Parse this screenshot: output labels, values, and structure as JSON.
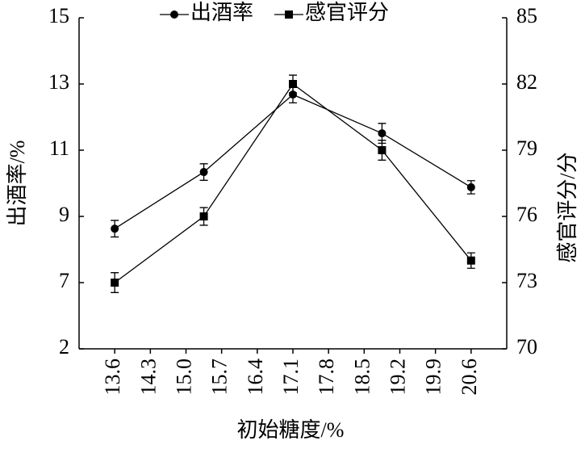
{
  "chart_data": {
    "type": "line",
    "x_label": "初始糖度/%",
    "y_label": "出酒率/%",
    "y2_label": "感官评分/分",
    "xlim": [
      12.9,
      21.3
    ],
    "xticks": [
      13.6,
      14.3,
      15.0,
      15.7,
      16.4,
      17.1,
      17.8,
      18.5,
      19.2,
      19.9,
      20.6
    ],
    "ylim": [
      2,
      15
    ],
    "yticks": [
      2,
      7,
      9,
      11,
      13,
      15
    ],
    "y_axis_break": true,
    "y2lim": [
      70,
      85
    ],
    "y2ticks": [
      70,
      73,
      76,
      79,
      82,
      85
    ],
    "x": [
      13.6,
      15.35,
      17.1,
      18.85,
      20.6
    ],
    "series": [
      {
        "name": "出酒率",
        "color": "#000000",
        "marker": "circle",
        "values": [
          8.63,
          10.34,
          12.68,
          11.51,
          9.88
        ],
        "errors": [
          0.25,
          0.25,
          0.25,
          0.3,
          0.2
        ]
      },
      {
        "name": "感官评分",
        "color": "#000000",
        "marker": "square",
        "axis": "y2",
        "values": [
          73,
          76,
          82,
          79,
          74
        ],
        "errors": [
          0.45,
          0.4,
          0.4,
          0.45,
          0.35
        ]
      }
    ]
  }
}
